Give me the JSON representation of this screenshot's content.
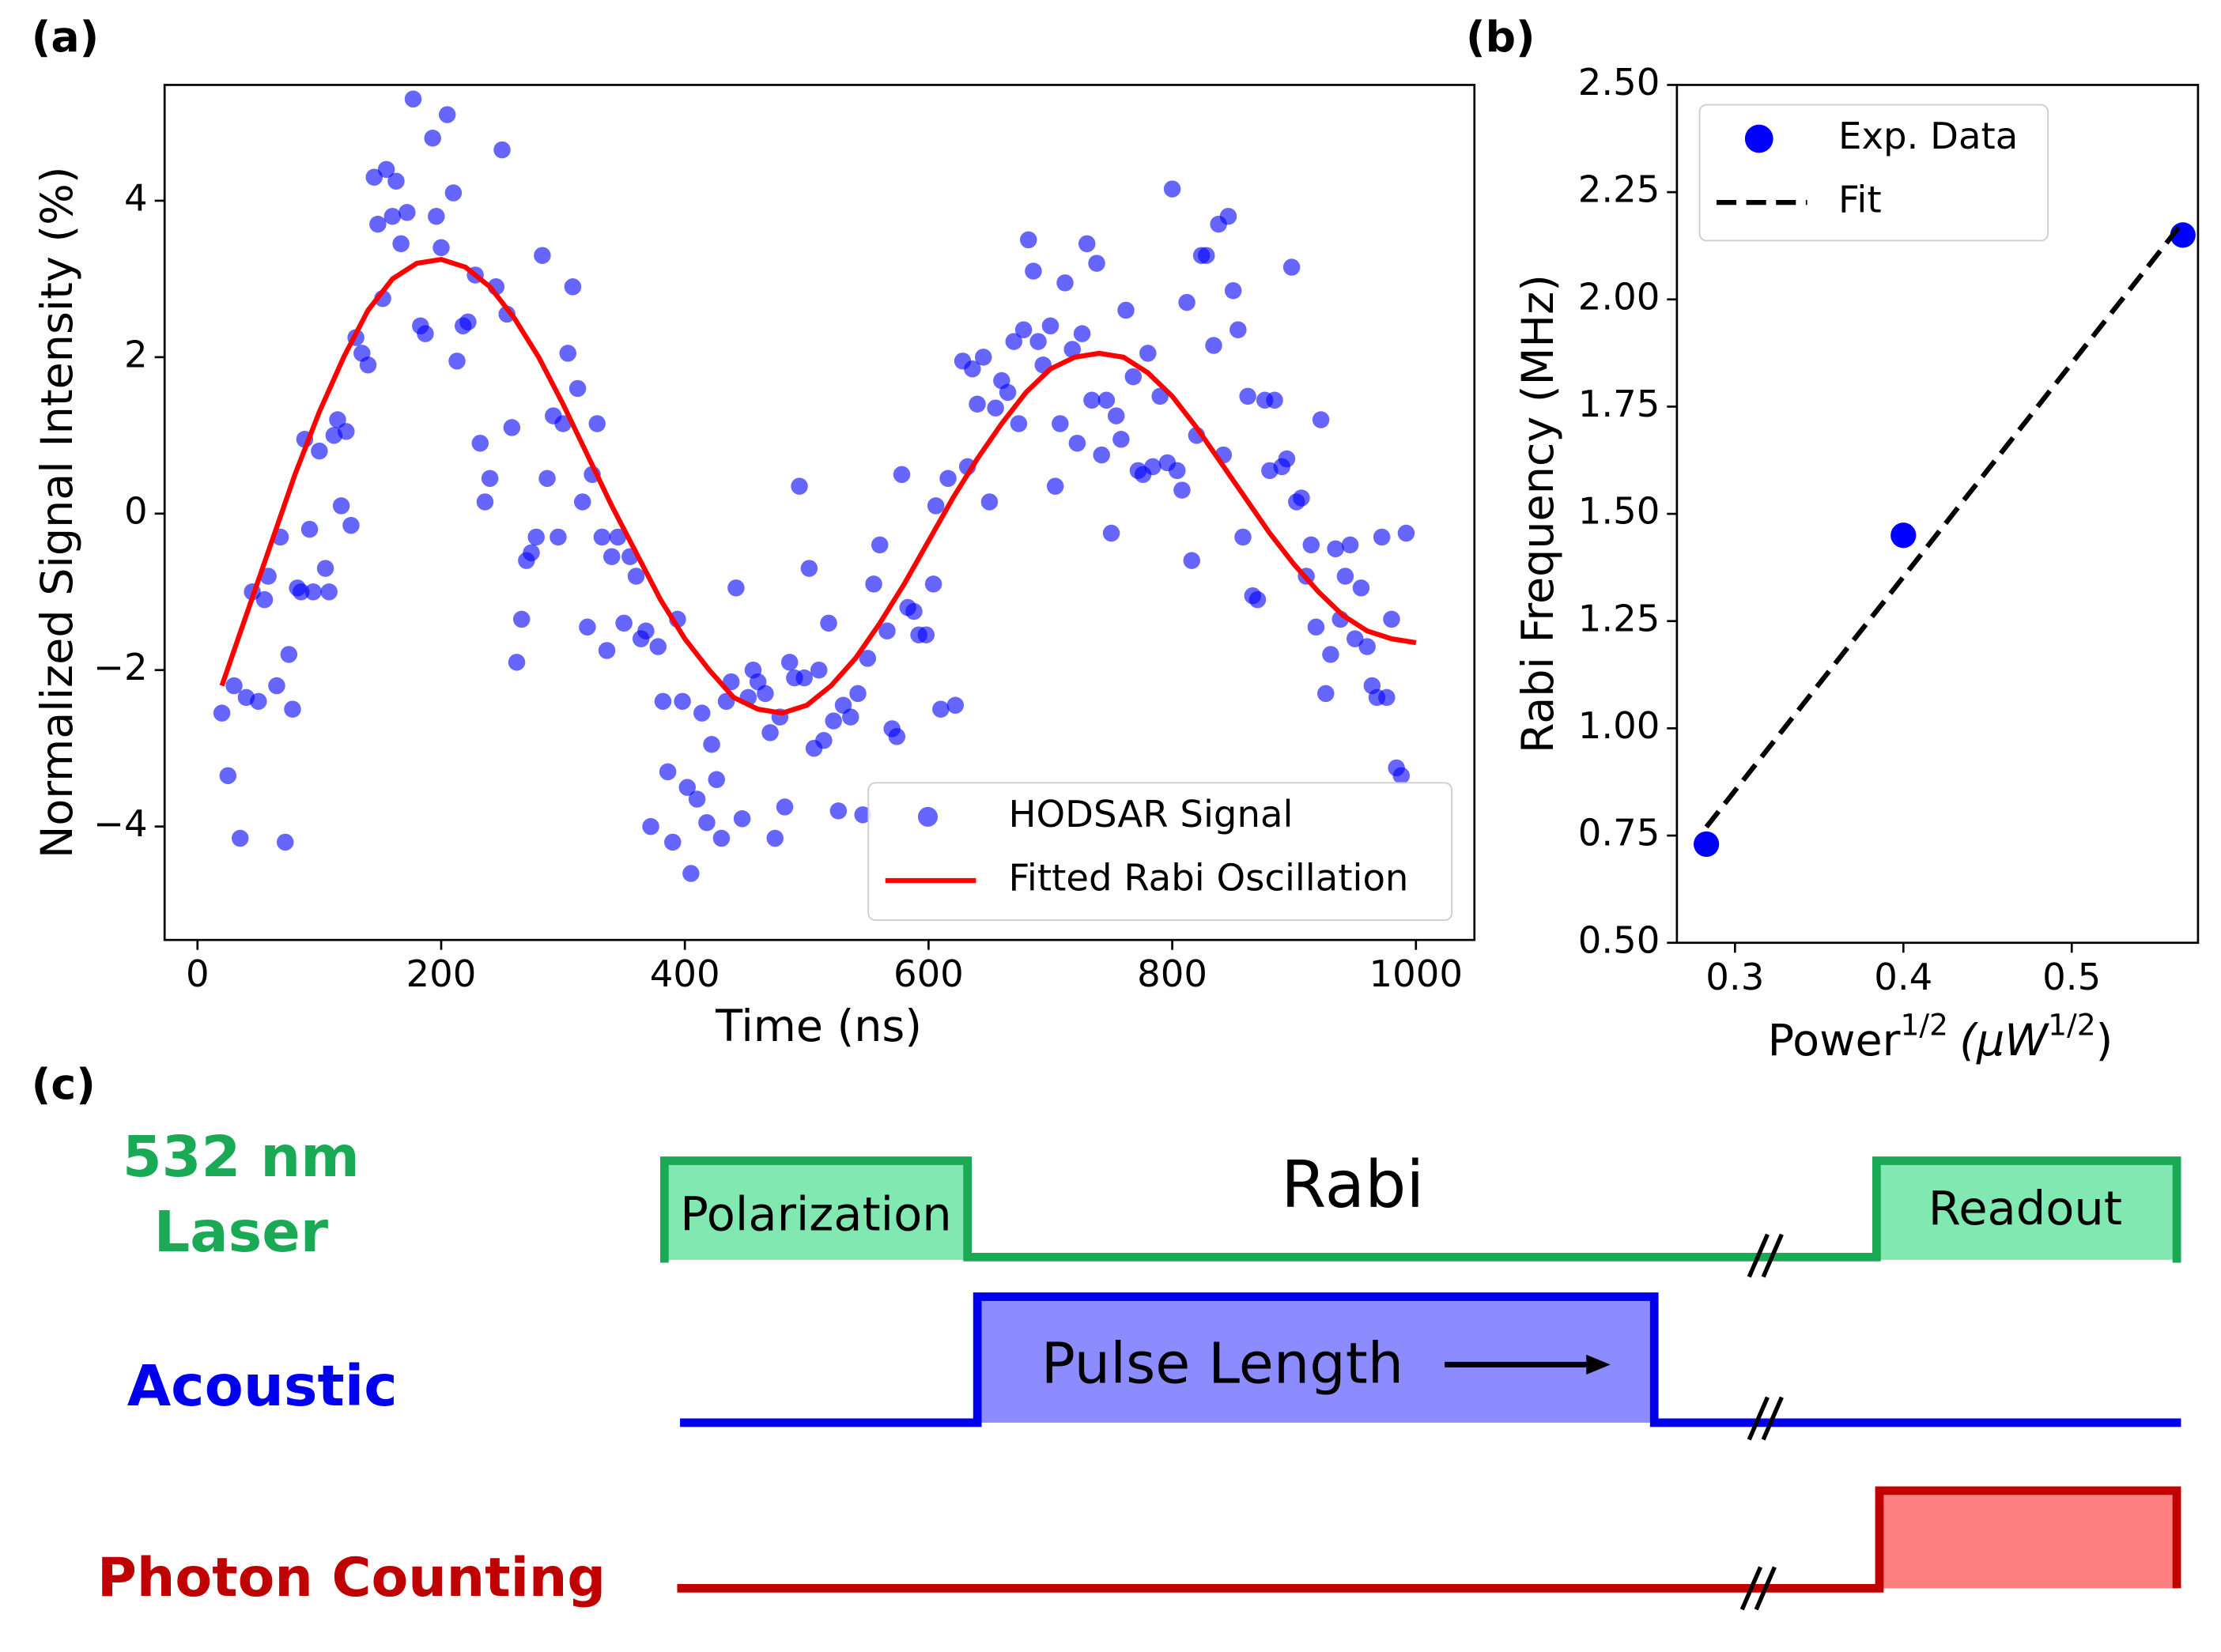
{
  "chart_data": [
    {
      "type": "scatter",
      "title": "(a)",
      "x_label": "Time (ns)",
      "y_label": "Normalized Signal Intensity (%)",
      "legend": "lower right",
      "xlim": [
        -27,
        1048
      ],
      "xticks": [
        0,
        200,
        400,
        600,
        800,
        1000
      ],
      "ylim": [
        -5.45,
        5.48
      ],
      "yticks": [
        {
          "value": -4,
          "label": "−4"
        },
        {
          "value": -2,
          "label": "−2"
        },
        0,
        2,
        4
      ],
      "series": [
        {
          "name": "HODSAR Signal",
          "color": "#0000ff",
          "x": [
            20,
            25,
            30,
            35,
            40,
            45,
            50,
            55,
            58,
            65,
            68,
            72,
            75,
            78,
            82,
            85,
            88,
            92,
            95,
            100,
            105,
            108,
            112,
            115,
            118,
            122,
            126,
            130,
            135,
            140,
            145,
            148,
            152,
            155,
            160,
            163,
            167,
            172,
            177,
            183,
            187,
            193,
            196,
            200,
            205,
            210,
            213,
            218,
            222,
            228,
            232,
            236,
            240,
            245,
            250,
            254,
            258,
            262,
            266,
            270,
            274,
            278,
            283,
            287,
            292,
            296,
            300,
            304,
            308,
            312,
            316,
            320,
            324,
            328,
            332,
            336,
            340,
            345,
            350,
            355,
            360,
            364,
            368,
            372,
            378,
            382,
            386,
            390,
            394,
            398,
            402,
            405,
            410,
            414,
            418,
            422,
            426,
            430,
            434,
            438,
            442,
            447,
            452,
            456,
            460,
            466,
            470,
            474,
            478,
            482,
            486,
            490,
            494,
            498,
            502,
            506,
            510,
            514,
            518,
            522,
            526,
            530,
            536,
            542,
            546,
            550,
            555,
            560,
            566,
            570,
            574,
            578,
            583,
            588,
            592,
            598,
            604,
            606,
            610,
            616,
            622,
            628,
            632,
            636,
            640,
            645,
            650,
            655,
            660,
            665,
            670,
            674,
            678,
            682,
            686,
            690,
            694,
            700,
            704,
            708,
            712,
            718,
            722,
            726,
            730,
            734,
            738,
            742,
            746,
            750,
            754,
            758,
            762,
            768,
            772,
            776,
            780,
            784,
            790,
            796,
            800,
            804,
            808,
            812,
            816,
            820,
            824,
            828,
            834,
            838,
            842,
            846,
            850,
            854,
            858,
            862,
            866,
            870,
            876,
            880,
            884,
            890,
            894,
            898,
            902,
            906,
            910,
            914,
            918,
            922,
            926,
            930,
            934,
            938,
            942,
            946,
            950,
            955,
            960,
            964,
            968,
            972,
            976,
            980,
            984,
            988,
            992
          ],
          "values": [
            -2.55,
            -3.35,
            -2.2,
            -4.15,
            -2.35,
            -1.0,
            -2.4,
            -1.1,
            -0.8,
            -2.2,
            -0.3,
            -4.2,
            -1.8,
            -2.5,
            -0.95,
            -1.0,
            0.95,
            -0.2,
            -1.0,
            0.8,
            -0.7,
            -1.0,
            1.0,
            1.2,
            0.1,
            1.05,
            -0.15,
            2.25,
            2.05,
            1.9,
            4.3,
            3.7,
            2.75,
            4.4,
            3.8,
            4.25,
            3.45,
            3.85,
            5.3,
            2.4,
            2.3,
            4.8,
            3.8,
            3.4,
            5.1,
            4.1,
            1.95,
            2.4,
            2.45,
            3.05,
            0.9,
            0.15,
            0.45,
            2.9,
            4.65,
            2.55,
            1.1,
            -1.9,
            -1.35,
            -0.6,
            -0.5,
            -0.3,
            3.3,
            0.45,
            1.25,
            -0.3,
            1.15,
            2.05,
            2.9,
            1.6,
            0.15,
            -1.45,
            0.5,
            1.15,
            -0.3,
            -1.75,
            -0.55,
            -0.3,
            -1.4,
            -0.55,
            -0.8,
            -1.6,
            -1.5,
            -4.0,
            -1.7,
            -2.4,
            -3.3,
            -4.2,
            -1.35,
            -2.4,
            -3.5,
            -4.6,
            -3.65,
            -2.55,
            -3.95,
            -2.95,
            -3.4,
            -4.15,
            -2.4,
            -2.15,
            -0.95,
            -3.9,
            -2.35,
            -2.0,
            -2.15,
            -2.3,
            -2.8,
            -4.15,
            -2.6,
            -3.75,
            -1.9,
            -2.1,
            0.35,
            -2.1,
            -0.7,
            -3.0,
            -2.0,
            -2.9,
            -1.4,
            -2.65,
            -3.8,
            -2.45,
            -2.6,
            -2.3,
            -3.85,
            -1.85,
            -0.9,
            -0.4,
            -1.5,
            -2.75,
            -2.85,
            0.5,
            -1.2,
            -1.25,
            -1.55,
            -1.55,
            -0.9,
            0.1,
            -2.5,
            0.45,
            -2.45,
            1.95,
            0.6,
            1.85,
            1.4,
            2.0,
            0.15,
            1.35,
            1.7,
            1.55,
            2.2,
            1.15,
            2.35,
            3.5,
            3.1,
            2.2,
            1.9,
            2.4,
            0.35,
            1.15,
            2.95,
            2.1,
            0.9,
            2.3,
            3.45,
            1.45,
            3.2,
            0.75,
            1.45,
            -0.25,
            1.25,
            0.95,
            2.6,
            1.75,
            0.55,
            0.5,
            2.05,
            0.6,
            1.5,
            0.65,
            4.15,
            0.55,
            0.3,
            2.7,
            -0.6,
            1.0,
            3.3,
            3.3,
            2.15,
            3.7,
            0.75,
            3.8,
            2.85,
            2.35,
            -0.3,
            1.5,
            -1.05,
            -1.1,
            1.45,
            0.55,
            1.45,
            0.6,
            0.7,
            3.15,
            0.15,
            0.2,
            -0.8,
            -0.4,
            -1.45,
            1.2,
            -2.3,
            -1.8,
            -0.45,
            -1.35,
            -0.8,
            -0.4,
            -1.6,
            -0.95,
            -1.7,
            -2.2,
            -2.35,
            -0.3,
            -2.35,
            -1.35,
            -3.25,
            -3.35,
            -0.25
          ]
        },
        {
          "name": "Fitted Rabi Oscillation",
          "color": "#ff0000",
          "type": "line",
          "x": [
            20,
            40,
            60,
            80,
            100,
            120,
            140,
            160,
            180,
            200,
            220,
            240,
            260,
            280,
            300,
            320,
            340,
            360,
            380,
            400,
            420,
            440,
            460,
            480,
            500,
            520,
            540,
            560,
            580,
            600,
            620,
            640,
            660,
            680,
            700,
            720,
            740,
            760,
            780,
            800,
            820,
            840,
            860,
            880,
            900,
            920,
            940,
            960,
            980,
            1000
          ],
          "values": [
            -2.2,
            -1.3,
            -0.4,
            0.5,
            1.3,
            2.0,
            2.6,
            3.0,
            3.2,
            3.25,
            3.15,
            2.9,
            2.5,
            2.0,
            1.4,
            0.75,
            0.1,
            -0.5,
            -1.1,
            -1.6,
            -2.0,
            -2.35,
            -2.5,
            -2.55,
            -2.45,
            -2.2,
            -1.85,
            -1.4,
            -0.9,
            -0.35,
            0.2,
            0.7,
            1.15,
            1.55,
            1.85,
            2.0,
            2.05,
            2.0,
            1.8,
            1.5,
            1.1,
            0.65,
            0.2,
            -0.25,
            -0.65,
            -1.0,
            -1.3,
            -1.5,
            -1.6,
            -1.65
          ]
        }
      ]
    },
    {
      "type": "scatter",
      "title": "(b)",
      "x_label": {
        "base": "Power",
        "sup": "1/2",
        "unit": "(μW",
        "unit_sup": "1/2",
        "close": ")"
      },
      "y_label": "Rabi Frequency (MHz)",
      "legend": "upper left",
      "xlim": [
        0.2655,
        0.575
      ],
      "xticks": [
        0.3,
        0.4,
        0.5
      ],
      "ylim": [
        0.5,
        2.5
      ],
      "yticks": [
        {
          "value": 0.5,
          "label": "0.50"
        },
        {
          "value": 0.75,
          "label": "0.75"
        },
        {
          "value": 1.0,
          "label": "1.00"
        },
        {
          "value": 1.25,
          "label": "1.25"
        },
        {
          "value": 1.5,
          "label": "1.50"
        },
        {
          "value": 1.75,
          "label": "1.75"
        },
        {
          "value": 2.0,
          "label": "2.00"
        },
        {
          "value": 2.25,
          "label": "2.25"
        },
        {
          "value": 2.5,
          "label": "2.50"
        }
      ],
      "series": [
        {
          "name": "Exp. Data",
          "color": "#0000ff",
          "x": [
            0.283,
            0.4,
            0.566
          ],
          "values": [
            0.73,
            1.45,
            2.15
          ]
        },
        {
          "name": "Fit",
          "color": "#000000",
          "type": "line",
          "dashed": true,
          "x": [
            0.283,
            0.566
          ],
          "values": [
            0.77,
            2.18
          ]
        }
      ]
    }
  ],
  "diagram": {
    "title": "(c)",
    "channels": [
      {
        "label": [
          "532 nm",
          "Laser"
        ],
        "blocks": [
          "Polarization",
          "Readout"
        ]
      },
      {
        "label": [
          "Acoustic"
        ],
        "blocks": [
          "Pulse Length"
        ]
      },
      {
        "label": [
          "Photon Counting"
        ]
      }
    ],
    "sequence_label": "Rabi"
  }
}
